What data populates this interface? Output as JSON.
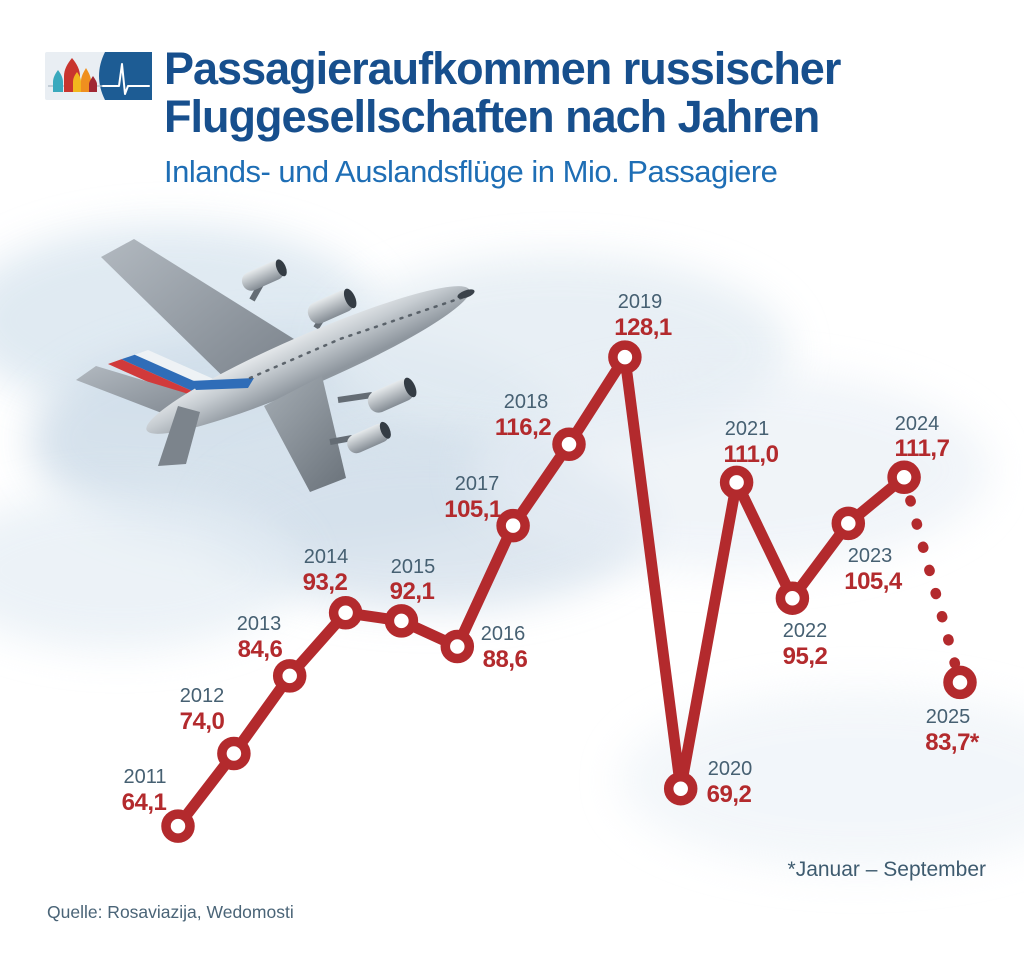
{
  "header": {
    "title_line1": "Passagieraufkommen russischer",
    "title_line2": "Fluggesellschaften nach Jahren",
    "subtitle": "Inlands- und Auslandsflüge in Mio. Passagiere"
  },
  "icons": {
    "logo": "st-basils-cathedral-heartbeat-logo",
    "illustration": "airplane-rear-view-with-russian-flag-tail"
  },
  "chart_data": {
    "type": "line",
    "title": "Passagieraufkommen russischer Fluggesellschaften nach Jahren",
    "subtitle": "Inlands- und Auslandsflüge in Mio. Passagiere",
    "unit": "Mio. Passagiere",
    "x": [
      2011,
      2012,
      2013,
      2014,
      2015,
      2016,
      2017,
      2018,
      2019,
      2020,
      2021,
      2022,
      2023,
      2024,
      2025
    ],
    "values": [
      64.1,
      74.0,
      84.6,
      93.2,
      92.1,
      88.6,
      105.1,
      116.2,
      128.1,
      69.2,
      111.0,
      95.2,
      105.4,
      111.7,
      83.7
    ],
    "value_labels": [
      "64,1",
      "74,0",
      "84,6",
      "93,2",
      "92,1",
      "88,6",
      "105,1",
      "116,2",
      "128,1",
      "69,2",
      "111,0",
      "95,2",
      "105,4",
      "111,7",
      "83,7*"
    ],
    "dashed_from": 2024,
    "grid": false,
    "legend": false,
    "colors": {
      "line": "#b32a2d",
      "marker_fill": "#ffffff",
      "value_label": "#b32a2d",
      "year_label": "#466072"
    }
  },
  "footnote": "*Januar – September",
  "source": "Quelle: Rosaviazija, Wedomosti",
  "colors": {
    "title_blue": "#174f8d",
    "subtitle_blue": "#1e6eb5",
    "accent_red": "#b32a2d",
    "slate": "#466072",
    "logo_blue": "#1d5c94"
  }
}
